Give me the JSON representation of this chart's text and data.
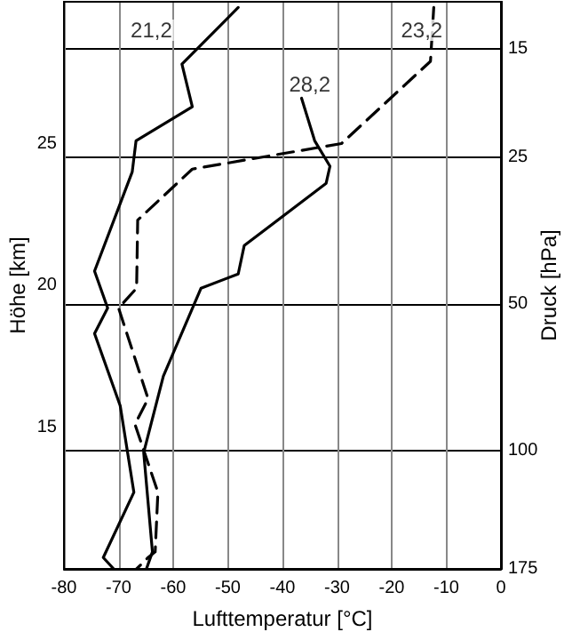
{
  "chart_data": {
    "type": "line",
    "xlabel": "Lufttemperatur [°C]",
    "ylabel": "Höhe [km]",
    "y2label": "Druck [hPa]",
    "xlim": [
      -80,
      0
    ],
    "xticks": [
      -80,
      -70,
      -60,
      -50,
      -40,
      -30,
      -20,
      -10,
      0
    ],
    "ylim": [
      10,
      30
    ],
    "yticks": [
      15,
      20,
      25
    ],
    "y2lim": [
      175,
      12
    ],
    "y2ticks": [
      15,
      25,
      50,
      100,
      175
    ],
    "log": "y2",
    "grid": true,
    "marker": "none",
    "series": [
      {
        "color": "#000000",
        "line_style": "solid",
        "x": [
          -48.1,
          -58.4,
          -56.5,
          -66.8,
          -67.5,
          -74.4,
          -72,
          -74.4,
          -69.7,
          -67.2,
          -72.8,
          -70.9
        ],
        "values": [
          29.8,
          27.8,
          26.3,
          25.1,
          24,
          20.5,
          19.2,
          18.3,
          15.75,
          12.7,
          10.4,
          10
        ]
      },
      {
        "color": "#000000",
        "line_style": "dashed",
        "x": [
          -12.3,
          -12.9,
          -29.2,
          -56.5,
          -66.5,
          -66.7,
          -70,
          -64.6,
          -67,
          -62.8,
          -63.3,
          -64.6,
          -66.7
        ],
        "values": [
          29.8,
          27.9,
          25,
          24.1,
          22.3,
          19.9,
          19.2,
          16,
          15.1,
          12.7,
          10.6,
          10.4,
          10
        ]
      },
      {
        "color": "#000000",
        "line_style": "solid",
        "x": [
          -36.5,
          -34.1,
          -31.3,
          -32,
          -47,
          -48.1,
          -54.9,
          -61.8,
          -65.4,
          -63.8,
          -64.9
        ],
        "values": [
          26.6,
          25.1,
          24.2,
          23.6,
          21.4,
          20.4,
          19.9,
          16.8,
          14.1,
          10.6,
          10
        ]
      }
    ],
    "annotations": [
      {
        "text": "21,2",
        "x": -64,
        "y": 29
      },
      {
        "text": "23,2",
        "x": -14.5,
        "y": 29
      },
      {
        "text": "28,2",
        "x": -35,
        "y": 27.1
      }
    ]
  }
}
